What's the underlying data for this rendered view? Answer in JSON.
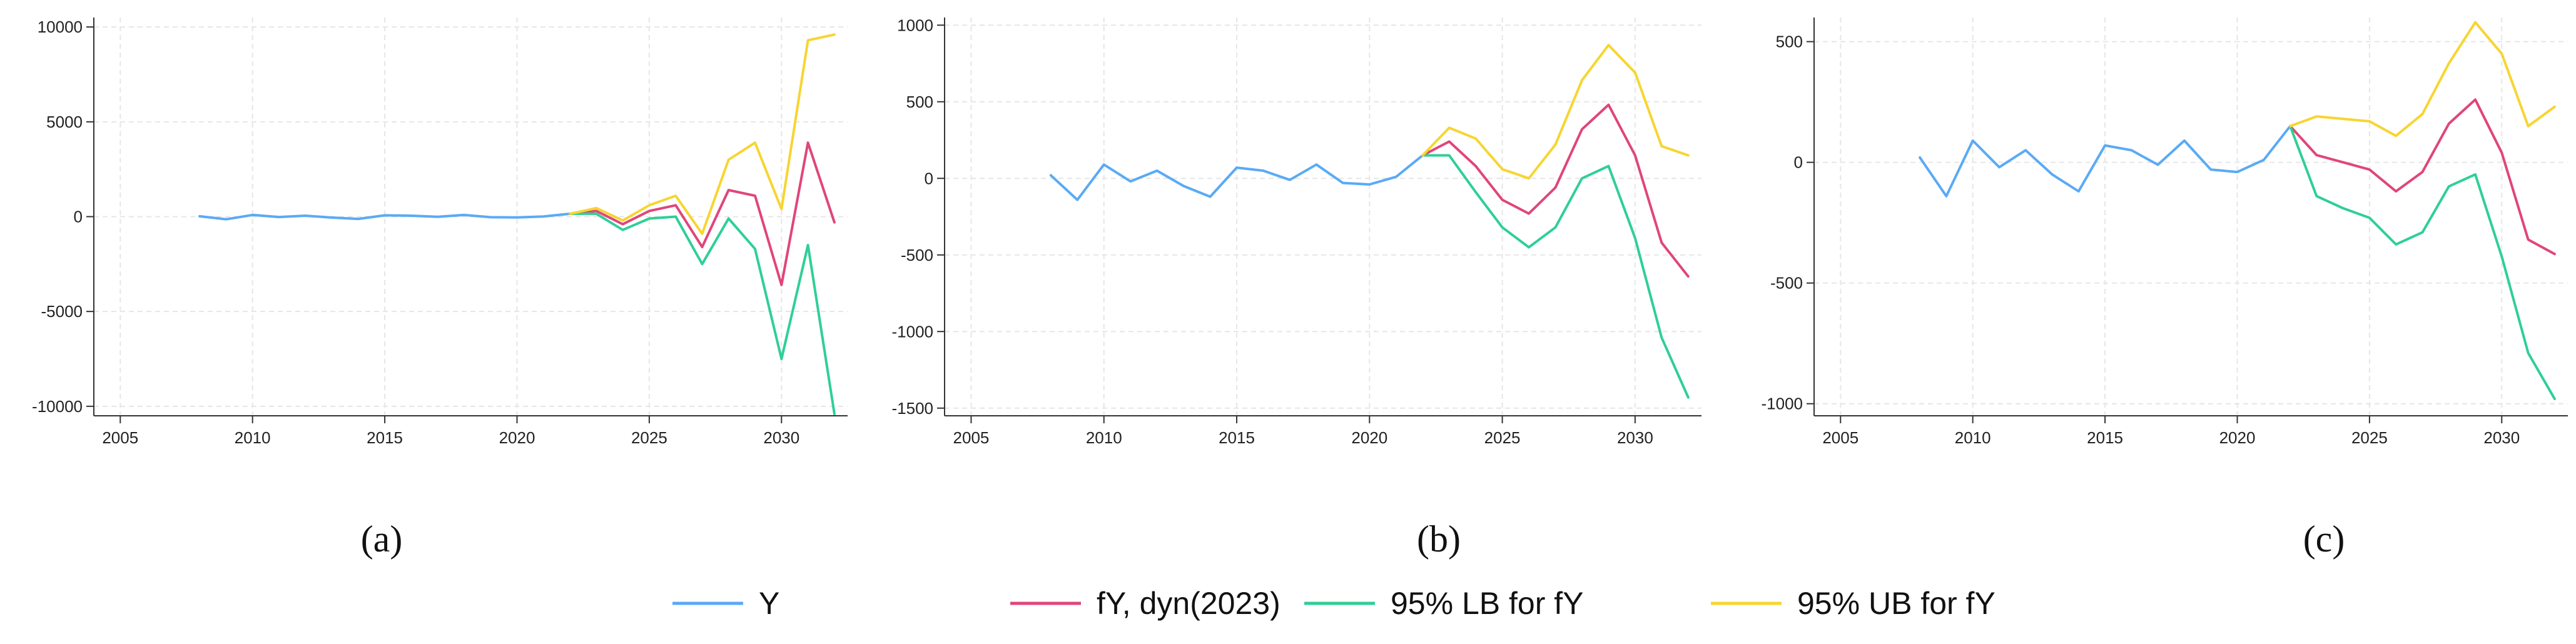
{
  "legend": [
    {
      "name": "Y",
      "color": "#5aaaf5"
    },
    {
      "name": "fY, dyn(2023)",
      "color": "#e0457b"
    },
    {
      "name": "95% LB for fY",
      "color": "#2fcf96"
    },
    {
      "name": "95% UB for fY",
      "color": "#f7d531"
    }
  ],
  "chart_data": [
    {
      "type": "line",
      "caption": "(a)",
      "xlim": [
        2004,
        2032.5
      ],
      "ylim": [
        -10500,
        10500
      ],
      "xticks": [
        2005,
        2010,
        2015,
        2020,
        2025,
        2030
      ],
      "yticks": [
        -10000,
        -5000,
        0,
        5000,
        10000
      ],
      "grid": true,
      "series": [
        {
          "name": "Y",
          "color": "#5aaaf5",
          "x": [
            2008,
            2009,
            2010,
            2011,
            2012,
            2013,
            2014,
            2015,
            2016,
            2017,
            2018,
            2019,
            2020,
            2021,
            2022
          ],
          "y": [
            20,
            -140,
            90,
            -20,
            50,
            -50,
            -120,
            70,
            50,
            -10,
            90,
            -30,
            -40,
            10,
            150
          ]
        },
        {
          "name": "fY, dyn(2023)",
          "color": "#e0457b",
          "x": [
            2022,
            2023,
            2024,
            2025,
            2026,
            2027,
            2028,
            2029,
            2030,
            2031,
            2032
          ],
          "y": [
            150,
            300,
            -400,
            300,
            600,
            -1600,
            1400,
            1100,
            -3600,
            3900,
            -300
          ]
        },
        {
          "name": "95% LB for fY",
          "color": "#2fcf96",
          "x": [
            2022,
            2023,
            2024,
            2025,
            2026,
            2027,
            2028,
            2029,
            2030,
            2031,
            2032
          ],
          "y": [
            150,
            150,
            -700,
            -100,
            0,
            -2500,
            -100,
            -1700,
            -7500,
            -1500,
            -10400
          ]
        },
        {
          "name": "95% UB for fY",
          "color": "#f7d531",
          "x": [
            2022,
            2023,
            2024,
            2025,
            2026,
            2027,
            2028,
            2029,
            2030,
            2031,
            2032
          ],
          "y": [
            150,
            450,
            -200,
            600,
            1100,
            -900,
            3000,
            3900,
            400,
            9300,
            9600
          ]
        }
      ]
    },
    {
      "type": "line",
      "caption": "(b)",
      "xlim": [
        2004,
        2032.5
      ],
      "ylim": [
        -1550,
        1050
      ],
      "xticks": [
        2005,
        2010,
        2015,
        2020,
        2025,
        2030
      ],
      "yticks": [
        -1500,
        -1000,
        -500,
        0,
        500,
        1000
      ],
      "grid": true,
      "series": [
        {
          "name": "Y",
          "color": "#5aaaf5",
          "x": [
            2008,
            2009,
            2010,
            2011,
            2012,
            2013,
            2014,
            2015,
            2016,
            2017,
            2018,
            2019,
            2020,
            2021,
            2022
          ],
          "y": [
            20,
            -140,
            90,
            -20,
            50,
            -50,
            -120,
            70,
            50,
            -10,
            90,
            -30,
            -40,
            10,
            150
          ]
        },
        {
          "name": "fY, dyn(2023)",
          "color": "#e0457b",
          "x": [
            2022,
            2023,
            2024,
            2025,
            2026,
            2027,
            2028,
            2029,
            2030,
            2031,
            2032
          ],
          "y": [
            150,
            240,
            80,
            -140,
            -230,
            -60,
            320,
            480,
            150,
            -420,
            -640
          ]
        },
        {
          "name": "95% LB for fY",
          "color": "#2fcf96",
          "x": [
            2022,
            2023,
            2024,
            2025,
            2026,
            2027,
            2028,
            2029,
            2030,
            2031,
            2032
          ],
          "y": [
            150,
            150,
            -90,
            -320,
            -450,
            -320,
            0,
            80,
            -390,
            -1040,
            -1430
          ]
        },
        {
          "name": "95% UB for fY",
          "color": "#f7d531",
          "x": [
            2022,
            2023,
            2024,
            2025,
            2026,
            2027,
            2028,
            2029,
            2030,
            2031,
            2032
          ],
          "y": [
            150,
            330,
            260,
            60,
            0,
            220,
            640,
            870,
            690,
            210,
            150
          ]
        }
      ]
    },
    {
      "type": "line",
      "caption": "(c)",
      "xlim": [
        2004,
        2032.5
      ],
      "ylim": [
        -1050,
        600
      ],
      "xticks": [
        2005,
        2010,
        2015,
        2020,
        2025,
        2030
      ],
      "yticks": [
        -1000,
        -500,
        0,
        500
      ],
      "grid": true,
      "series": [
        {
          "name": "Y",
          "color": "#5aaaf5",
          "x": [
            2008,
            2009,
            2010,
            2011,
            2012,
            2013,
            2014,
            2015,
            2016,
            2017,
            2018,
            2019,
            2020,
            2021,
            2022
          ],
          "y": [
            20,
            -140,
            90,
            -20,
            50,
            -50,
            -120,
            70,
            50,
            -10,
            90,
            -30,
            -40,
            10,
            150
          ]
        },
        {
          "name": "fY, dyn(2023)",
          "color": "#e0457b",
          "x": [
            2022,
            2023,
            2024,
            2025,
            2026,
            2027,
            2028,
            2029,
            2030,
            2031,
            2032
          ],
          "y": [
            150,
            30,
            0,
            -30,
            -120,
            -40,
            160,
            260,
            40,
            -320,
            -380
          ]
        },
        {
          "name": "95% LB for fY",
          "color": "#2fcf96",
          "x": [
            2022,
            2023,
            2024,
            2025,
            2026,
            2027,
            2028,
            2029,
            2030,
            2031,
            2032
          ],
          "y": [
            150,
            -140,
            -190,
            -230,
            -340,
            -290,
            -100,
            -50,
            -390,
            -790,
            -980
          ]
        },
        {
          "name": "95% UB for fY",
          "color": "#f7d531",
          "x": [
            2022,
            2023,
            2024,
            2025,
            2026,
            2027,
            2028,
            2029,
            2030,
            2031,
            2032
          ],
          "y": [
            150,
            190,
            180,
            170,
            110,
            200,
            410,
            580,
            450,
            150,
            230
          ]
        }
      ]
    }
  ]
}
